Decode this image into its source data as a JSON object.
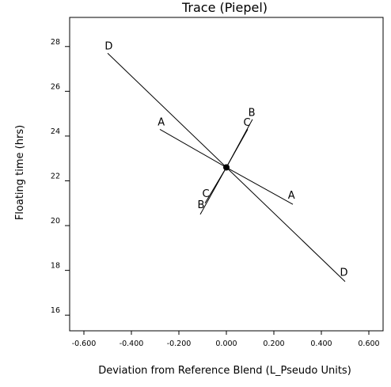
{
  "chart_data": {
    "type": "line",
    "title": "Trace (Piepel)",
    "xlabel": "Deviation from Reference Blend (L_Pseudo Units)",
    "ylabel": "Floating time  (hrs)",
    "xlim": [
      -0.66,
      0.66
    ],
    "ylim": [
      15.3,
      29.3
    ],
    "xticks": [
      -0.6,
      -0.4,
      -0.2,
      0.0,
      0.2,
      0.4,
      0.6
    ],
    "xtick_labels": [
      "-0.600",
      "-0.400",
      "-0.200",
      "0.000",
      "0.200",
      "0.400",
      "0.600"
    ],
    "yticks": [
      16,
      18,
      20,
      22,
      24,
      26,
      28
    ],
    "ytick_labels": [
      "16",
      "18",
      "20",
      "22",
      "24",
      "26",
      "28"
    ],
    "grid": false,
    "reference_point": {
      "x": 0.0,
      "y": 22.6
    },
    "series": [
      {
        "name": "A",
        "x": [
          -0.28,
          0.0,
          0.28
        ],
        "y": [
          24.3,
          22.6,
          20.95
        ]
      },
      {
        "name": "B",
        "x": [
          -0.11,
          0.0,
          0.11
        ],
        "y": [
          20.5,
          22.6,
          24.75
        ]
      },
      {
        "name": "C",
        "x": [
          -0.09,
          0.0,
          0.09
        ],
        "y": [
          21.0,
          22.6,
          24.3
        ]
      },
      {
        "name": "D",
        "x": [
          -0.5,
          0.0,
          0.5
        ],
        "y": [
          27.7,
          22.6,
          17.5
        ]
      }
    ]
  }
}
